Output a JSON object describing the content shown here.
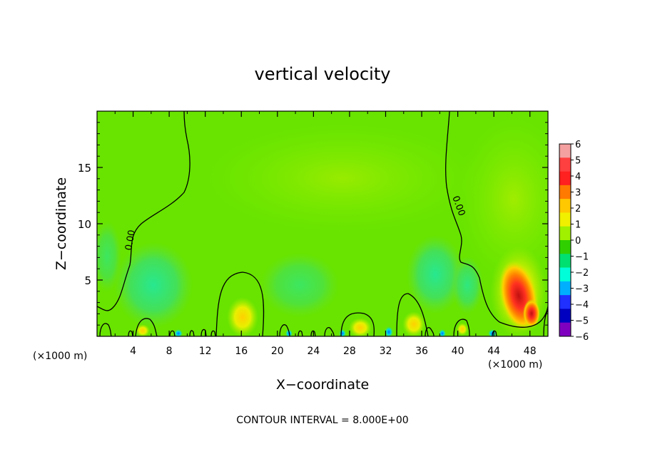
{
  "chart_data": {
    "type": "heatmap",
    "title": "vertical velocity",
    "xlabel": "X−coordinate",
    "ylabel": "Z−coordinate",
    "x_unit": "(×1000 m)",
    "x_unit_right": "(×1000 m)",
    "footer": "CONTOUR INTERVAL = 8.000E+00",
    "xlim": [
      0,
      50
    ],
    "ylim": [
      0,
      20
    ],
    "x_ticks": [
      4,
      8,
      12,
      16,
      20,
      24,
      28,
      32,
      36,
      40,
      44,
      48
    ],
    "y_ticks": [
      5,
      10,
      15
    ],
    "contour_labels": [
      {
        "text": "0.00",
        "x": 4.0,
        "y": 8.5
      },
      {
        "text": "0.00",
        "x": 39.8,
        "y": 11.5
      }
    ],
    "colorbar": {
      "levels": [
        6,
        5,
        4,
        3,
        2,
        1,
        0,
        -1,
        -2,
        -3,
        -4,
        -5,
        -6
      ],
      "labels": [
        "6",
        "5",
        "4",
        "3",
        "2",
        "1",
        "0",
        "−1",
        "−2",
        "−3",
        "−4",
        "−5",
        "−6"
      ],
      "colors": [
        "#f4a0a0",
        "#ff4040",
        "#ff2020",
        "#ff7a00",
        "#ffc800",
        "#f0f000",
        "#a0f000",
        "#30d000",
        "#00e070",
        "#00ffd8",
        "#00b0ff",
        "#2030ff",
        "#0000c0",
        "#8000c0"
      ]
    },
    "features": [
      {
        "x": 46.5,
        "y": 3.5,
        "value": 5,
        "desc": "strong updraft core"
      },
      {
        "x": 16.0,
        "y": 2.0,
        "value": 2
      },
      {
        "x": 30.0,
        "y": 1.0,
        "value": 2
      },
      {
        "x": 34.0,
        "y": 1.5,
        "value": 2
      },
      {
        "x": 5.0,
        "y": 0.8,
        "value": 2
      },
      {
        "x": 6.0,
        "y": 6.0,
        "value": -1
      },
      {
        "x": 36.0,
        "y": 6.0,
        "value": -1
      },
      {
        "x": 32.5,
        "y": 0.5,
        "value": -3
      }
    ]
  }
}
